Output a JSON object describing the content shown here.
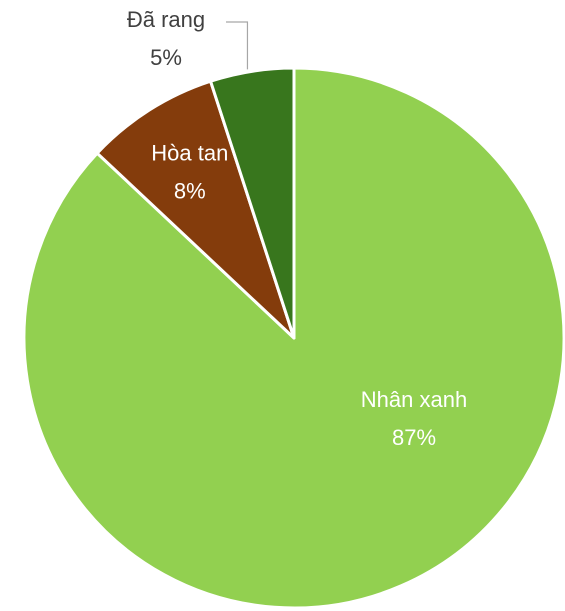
{
  "chart_data": {
    "type": "pie",
    "categories": [
      "Nhân xanh",
      "Hòa tan",
      "Đã rang"
    ],
    "values": [
      87,
      8,
      5
    ],
    "value_labels": [
      "87%",
      "8%",
      "5%"
    ],
    "colors": [
      "#92d050",
      "#843c0c",
      "#38761d"
    ]
  }
}
